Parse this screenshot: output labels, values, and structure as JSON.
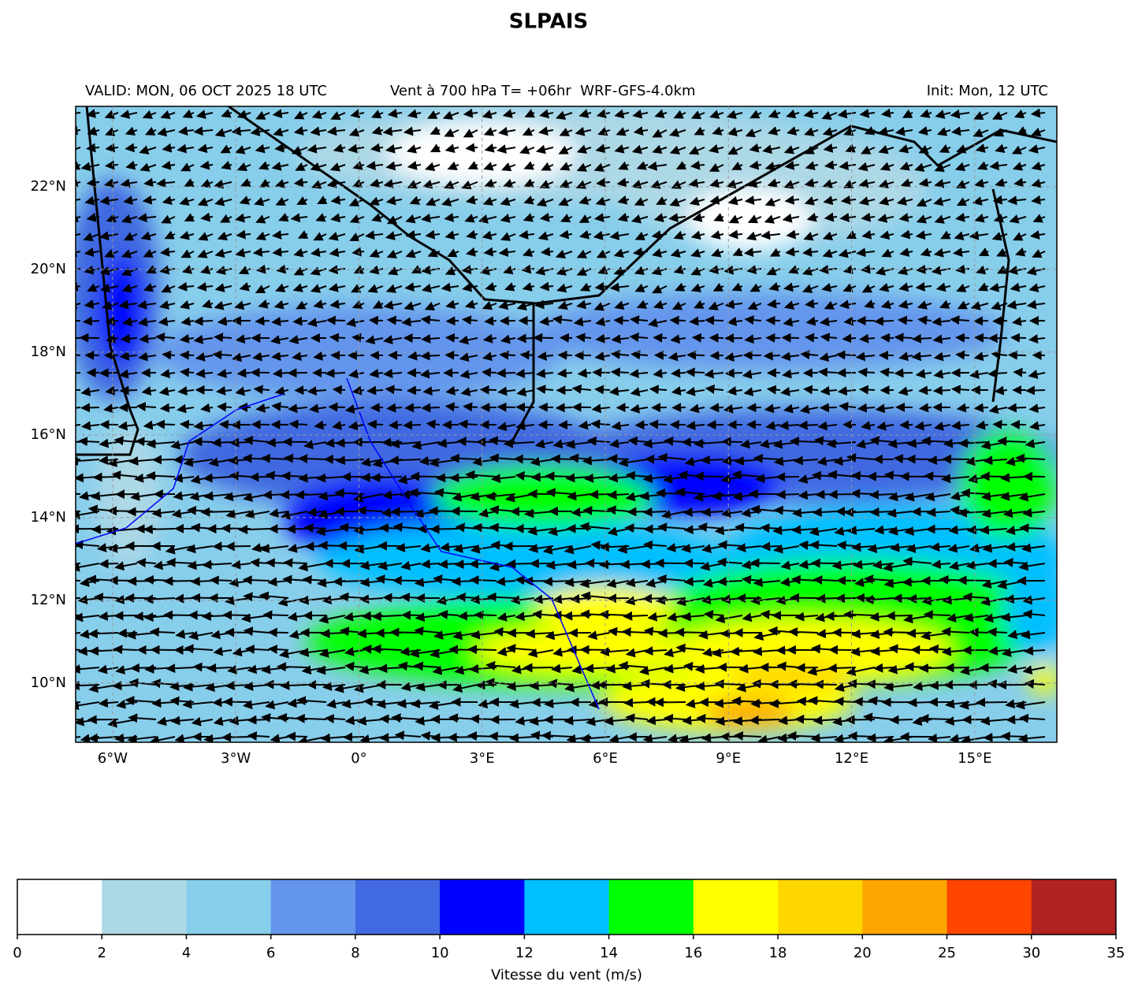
{
  "map": {
    "title": "SLPAIS",
    "subtitle_left": "VALID: MON, 06 OCT 2025 18 UTC",
    "subtitle_center": "Vent à 700 hPa T= +06hr  WRF-GFS-4.0km",
    "subtitle_right": "Init: Mon, 12 UTC",
    "xlim": [
      -6.9,
      17.0
    ],
    "ylim": [
      8.57,
      23.94
    ],
    "xticks": [
      {
        "value": -6,
        "label": "6°W"
      },
      {
        "value": -3,
        "label": "3°W"
      },
      {
        "value": 0,
        "label": "0°"
      },
      {
        "value": 3,
        "label": "3°E"
      },
      {
        "value": 6,
        "label": "6°E"
      },
      {
        "value": 9,
        "label": "9°E"
      },
      {
        "value": 12,
        "label": "12°E"
      },
      {
        "value": 15,
        "label": "15°E"
      }
    ],
    "yticks": [
      {
        "value": 10,
        "label": "10°N"
      },
      {
        "value": 12,
        "label": "12°N"
      },
      {
        "value": 14,
        "label": "14°N"
      },
      {
        "value": 16,
        "label": "16°N"
      },
      {
        "value": 18,
        "label": "18°N"
      },
      {
        "value": 20,
        "label": "20°N"
      },
      {
        "value": 22,
        "label": "22°N"
      }
    ],
    "grid": true,
    "colorbar": {
      "label": "Vitesse du vent (m/s)",
      "boundaries": [
        0,
        2,
        4,
        6,
        8,
        10,
        12,
        14,
        16,
        18,
        20,
        25,
        30,
        35
      ],
      "colors": [
        "#ffffff",
        "#add8e6",
        "#87ceeb",
        "#6495ed",
        "#4169e1",
        "#0000ff",
        "#00bfff",
        "#00ff00",
        "#ffff00",
        "#ffd700",
        "#ffa500",
        "#ff4500",
        "#b22222"
      ]
    }
  }
}
